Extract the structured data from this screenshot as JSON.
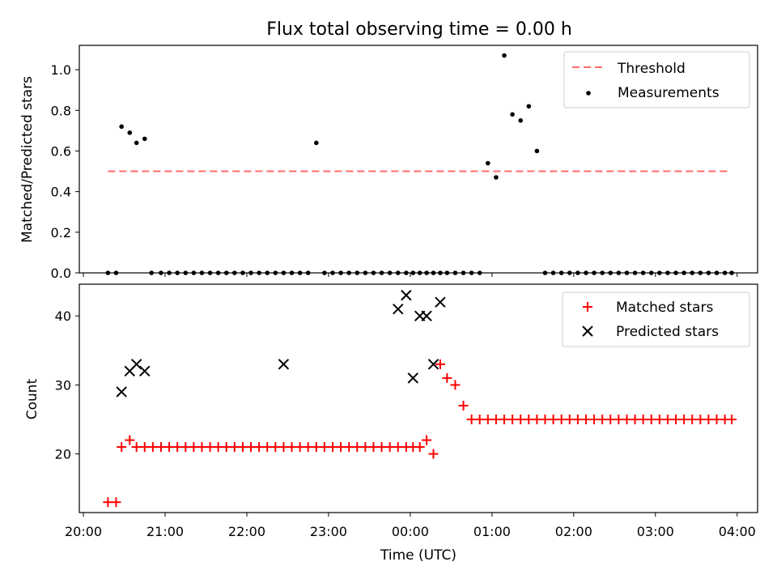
{
  "chart_data": {
    "type": "scatter",
    "title": "Flux total observing time = 0.00 h",
    "x_tick_labels": [
      "20:00",
      "21:00",
      "22:00",
      "23:00",
      "00:00",
      "01:00",
      "02:00",
      "03:00",
      "04:00"
    ],
    "xlabel": "Time (UTC)",
    "xlim": [
      "19:57",
      "04:15"
    ],
    "panels": [
      {
        "ylabel": "Matched/Predicted stars",
        "ylim": [
          0,
          1.12
        ],
        "y_ticks": [
          "0.0",
          "0.2",
          "0.4",
          "0.6",
          "0.8",
          "1.0"
        ],
        "y_tick_values": [
          0,
          0.2,
          0.4,
          0.6,
          0.8,
          1.0
        ],
        "legend": {
          "placement": "top-right",
          "entries": [
            "Threshold",
            "Measurements"
          ]
        },
        "series": [
          {
            "name": "Threshold",
            "style": "dashed-line",
            "color": "#ff6b6b",
            "x": [
              "20:18",
              "03:55"
            ],
            "y": [
              0.5,
              0.5
            ]
          },
          {
            "name": "Measurements",
            "style": "dot",
            "color": "#000000",
            "x": [
              "20:18",
              "20:24",
              "20:28",
              "20:34",
              "20:39",
              "20:45",
              "20:50",
              "20:57",
              "21:03",
              "21:09",
              "21:15",
              "21:21",
              "21:27",
              "21:33",
              "21:39",
              "21:45",
              "21:51",
              "21:57",
              "22:03",
              "22:09",
              "22:15",
              "22:21",
              "22:27",
              "22:33",
              "22:39",
              "22:45",
              "22:51",
              "22:57",
              "23:03",
              "23:09",
              "23:15",
              "23:21",
              "23:27",
              "23:33",
              "23:39",
              "23:45",
              "23:51",
              "23:57",
              "00:02",
              "00:07",
              "00:12",
              "00:17",
              "00:22",
              "00:27",
              "00:33",
              "00:39",
              "00:45",
              "00:51",
              "00:57",
              "01:03",
              "01:09",
              "01:15",
              "01:21",
              "01:27",
              "01:33",
              "01:39",
              "01:45",
              "01:51",
              "01:57",
              "02:03",
              "02:09",
              "02:15",
              "02:21",
              "02:27",
              "02:33",
              "02:39",
              "02:45",
              "02:51",
              "02:57",
              "03:03",
              "03:09",
              "03:15",
              "03:21",
              "03:27",
              "03:33",
              "03:39",
              "03:45",
              "03:51",
              "03:56"
            ],
            "y": [
              0,
              0,
              0.72,
              0.69,
              0.64,
              0.66,
              0,
              0,
              0,
              0,
              0,
              0,
              0,
              0,
              0,
              0,
              0,
              0,
              0,
              0,
              0,
              0,
              0,
              0,
              0,
              0,
              0.64,
              0,
              0,
              0,
              0,
              0,
              0,
              0,
              0,
              0,
              0,
              0,
              0,
              0,
              0,
              0,
              0,
              0,
              0,
              0,
              0,
              0,
              0.54,
              0.47,
              1.07,
              0.78,
              0.75,
              0.82,
              0.6,
              0,
              0,
              0,
              0,
              0,
              0,
              0,
              0,
              0,
              0,
              0,
              0,
              0,
              0,
              0,
              0,
              0,
              0,
              0,
              0,
              0,
              0,
              0,
              0
            ]
          }
        ]
      },
      {
        "ylabel": "Count",
        "ylim": [
          11.5,
          44.6
        ],
        "y_ticks": [
          "20",
          "30",
          "40"
        ],
        "y_tick_values": [
          20,
          30,
          40
        ],
        "legend": {
          "placement": "top-right",
          "entries": [
            "Matched stars",
            "Predicted stars"
          ]
        },
        "series": [
          {
            "name": "Matched stars",
            "style": "plus",
            "color": "#ff0000",
            "x": [
              "20:18",
              "20:24",
              "20:28",
              "20:34",
              "20:39",
              "20:45",
              "20:51",
              "20:57",
              "21:03",
              "21:09",
              "21:15",
              "21:21",
              "21:27",
              "21:33",
              "21:39",
              "21:45",
              "21:51",
              "21:57",
              "22:03",
              "22:09",
              "22:15",
              "22:21",
              "22:27",
              "22:33",
              "22:39",
              "22:45",
              "22:51",
              "22:57",
              "23:03",
              "23:09",
              "23:15",
              "23:21",
              "23:27",
              "23:33",
              "23:39",
              "23:45",
              "23:51",
              "23:57",
              "00:02",
              "00:07",
              "00:12",
              "00:17",
              "00:22",
              "00:27",
              "00:33",
              "00:39",
              "00:45",
              "00:51",
              "00:57",
              "01:03",
              "01:09",
              "01:15",
              "01:21",
              "01:27",
              "01:33",
              "01:39",
              "01:45",
              "01:51",
              "01:57",
              "02:03",
              "02:09",
              "02:15",
              "02:21",
              "02:27",
              "02:33",
              "02:39",
              "02:45",
              "02:51",
              "02:57",
              "03:03",
              "03:09",
              "03:15",
              "03:21",
              "03:27",
              "03:33",
              "03:39",
              "03:45",
              "03:51",
              "03:56"
            ],
            "y": [
              13,
              13,
              21,
              22,
              21,
              21,
              21,
              21,
              21,
              21,
              21,
              21,
              21,
              21,
              21,
              21,
              21,
              21,
              21,
              21,
              21,
              21,
              21,
              21,
              21,
              21,
              21,
              21,
              21,
              21,
              21,
              21,
              21,
              21,
              21,
              21,
              21,
              21,
              21,
              21,
              22,
              20,
              33,
              31,
              30,
              27,
              25,
              25,
              25,
              25,
              25,
              25,
              25,
              25,
              25,
              25,
              25,
              25,
              25,
              25,
              25,
              25,
              25,
              25,
              25,
              25,
              25,
              25,
              25,
              25,
              25,
              25,
              25,
              25,
              25,
              25,
              25,
              25,
              25
            ]
          },
          {
            "name": "Predicted stars",
            "style": "x",
            "color": "#000000",
            "x": [
              "20:28",
              "20:34",
              "20:39",
              "20:45",
              "22:27",
              "23:51",
              "23:57",
              "00:02",
              "00:07",
              "00:12",
              "00:17",
              "00:22"
            ],
            "y": [
              29,
              32,
              33,
              32,
              33,
              41,
              43,
              31,
              40,
              40,
              33,
              42
            ]
          }
        ]
      }
    ]
  }
}
